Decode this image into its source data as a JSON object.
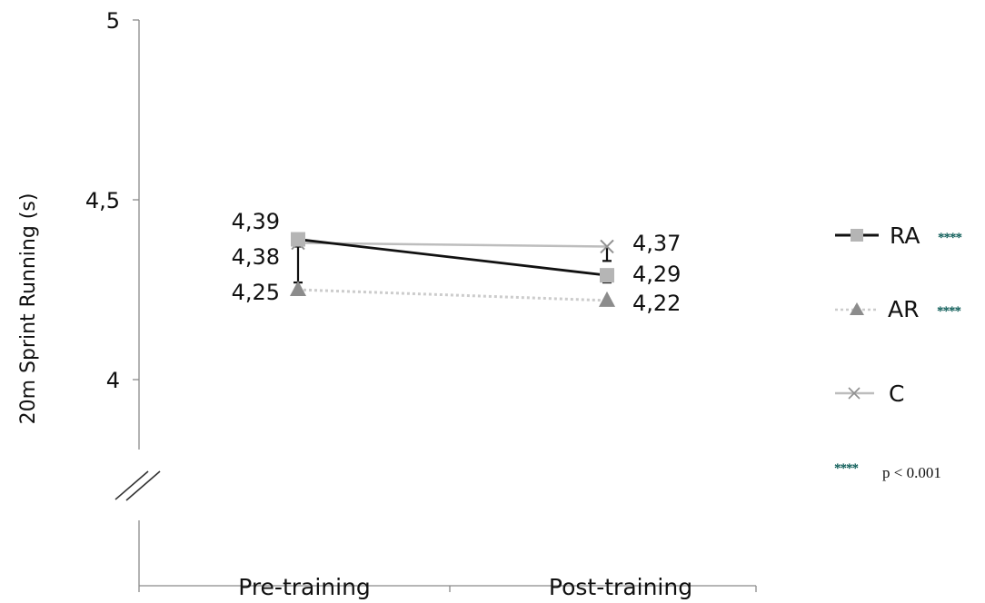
{
  "chart_data": {
    "type": "line",
    "categories": [
      "Pre-training",
      "Post-training"
    ],
    "ylabel": "20m Sprint Running (s)",
    "xlabel": "",
    "ylim": [
      4,
      5
    ],
    "yticks": [
      {
        "value": 5,
        "label": "5"
      },
      {
        "value": 4.5,
        "label": "4,5"
      },
      {
        "value": 4,
        "label": "4"
      }
    ],
    "axis_break": true,
    "grid": false,
    "legend_position": "right",
    "series": [
      {
        "name": "RA",
        "values": [
          4.39,
          4.29
        ],
        "labels": [
          "4,39",
          "4,29"
        ],
        "color": "#111111",
        "marker": "square",
        "marker_color": "#b5b5b5",
        "line_style": "solid",
        "significance": "****",
        "error": [
          0.02,
          0.02
        ]
      },
      {
        "name": "AR",
        "values": [
          4.25,
          4.22
        ],
        "labels": [
          "4,25",
          "4,22"
        ],
        "color": "#cccccc",
        "marker": "triangle",
        "marker_color": "#8c8c8c",
        "line_style": "dotted",
        "significance": "****"
      },
      {
        "name": "C",
        "values": [
          4.38,
          4.37
        ],
        "labels": [
          "4,38",
          "4,37"
        ],
        "color": "#bdbdbd",
        "marker": "x",
        "marker_color": "#909090",
        "line_style": "solid",
        "significance": "",
        "error": [
          0.11,
          0.04
        ]
      }
    ],
    "annotation": {
      "stars": "****",
      "text": "p < 0.001"
    }
  }
}
